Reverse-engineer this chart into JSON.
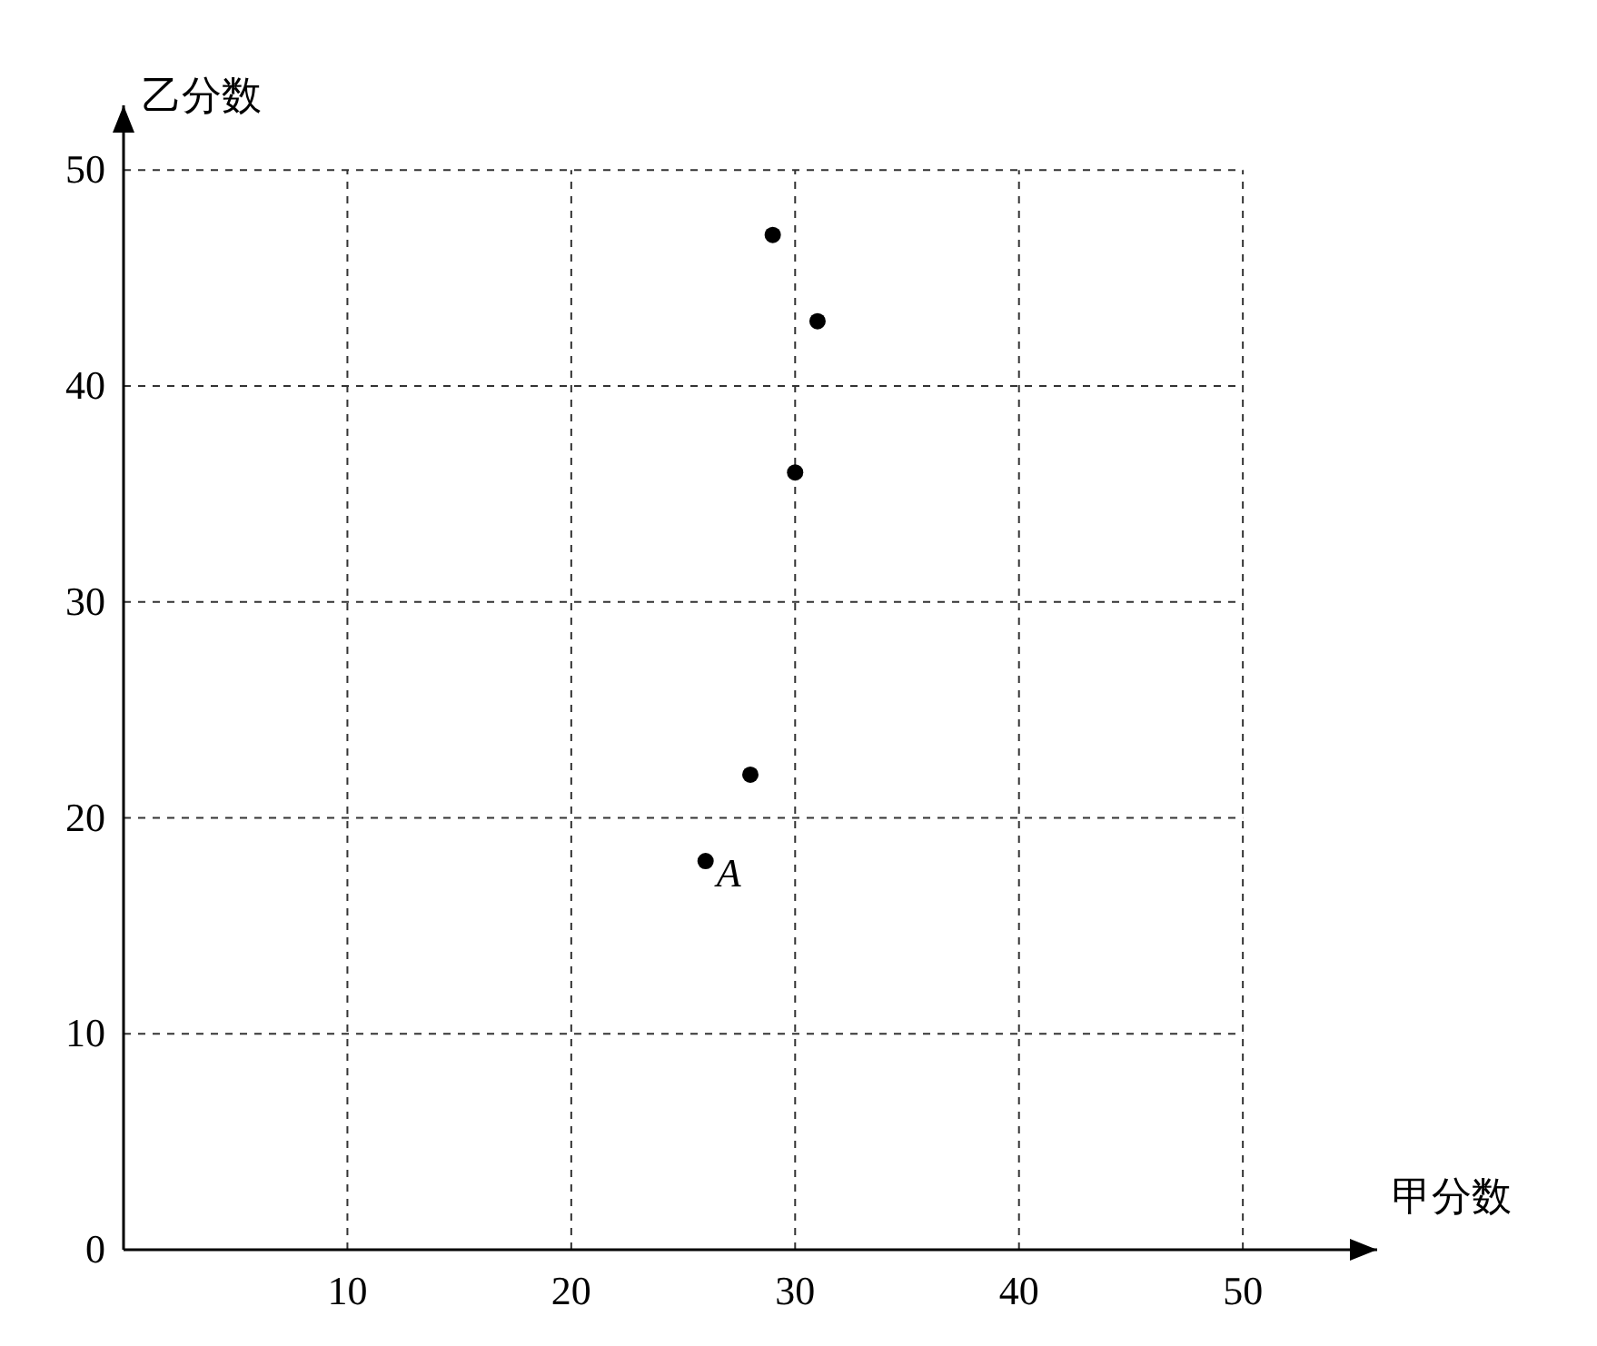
{
  "chart_data": {
    "type": "scatter",
    "xlabel": "甲分数",
    "ylabel": "乙分数",
    "x": [
      29,
      31,
      30,
      28,
      26
    ],
    "series": [
      {
        "color": "#000000",
        "values": [
          47,
          43,
          36,
          22,
          18
        ]
      }
    ],
    "xlim": [
      0,
      56
    ],
    "ylim": [
      0,
      53
    ],
    "xticks": [
      10,
      20,
      30,
      40,
      50
    ],
    "yticks": [
      0,
      10,
      20,
      30,
      40,
      50
    ],
    "grid": true,
    "marker": "circle",
    "annotations": [
      {
        "text": "A",
        "x": 26,
        "y": 18
      }
    ]
  }
}
